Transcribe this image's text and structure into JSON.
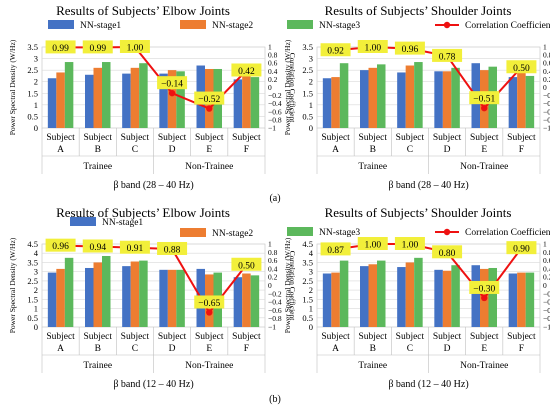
{
  "chart_data": [
    {
      "type": "bar",
      "title": "Results of Subjects’ Elbow Joints",
      "xlabel": "β band (28 – 40 Hz)",
      "ylabel": "Power Spectral Density (W/Hz)",
      "y2label": "Correlation Coefficient",
      "categories": [
        "Subject A",
        "Subject B",
        "Subject C",
        "Subject D",
        "Subject E",
        "Subject F"
      ],
      "groups": [
        "Trainee",
        "Non-Trainee"
      ],
      "series": [
        {
          "name": "NN-stage1",
          "values": [
            2.15,
            2.3,
            2.35,
            2.35,
            2.7,
            2.1
          ]
        },
        {
          "name": "NN-stage2",
          "values": [
            2.4,
            2.6,
            2.6,
            2.5,
            2.55,
            2.4
          ]
        },
        {
          "name": "NN-stage3",
          "values": [
            2.85,
            2.85,
            2.8,
            2.45,
            2.55,
            2.2
          ]
        }
      ],
      "line": {
        "name": "Correlation Coefficient",
        "values": [
          0.99,
          0.99,
          1.0,
          -0.14,
          -0.52,
          0.42
        ],
        "labels": [
          "0.99",
          "0.99",
          "1.00",
          "−0.14",
          "−0.52",
          "0.42"
        ]
      },
      "ylim": [
        0,
        3.5
      ],
      "yticks": [
        "0",
        "0.5",
        "1",
        "1.5",
        "2",
        "2.5",
        "3",
        "3.5"
      ],
      "y2lim": [
        -1,
        1
      ],
      "y2ticks": [
        "−1",
        "−0.8",
        "−0.6",
        "−0.4",
        "−0.2",
        "0",
        "0.2",
        "0.4",
        "0.6",
        "0.8",
        "1"
      ]
    },
    {
      "type": "bar",
      "title": "Results of Subjects’ Shoulder Joints",
      "xlabel": "β band (28 – 40 Hz)",
      "ylabel": "Power Spectral Density (W/Hz)",
      "y2label": "Correlation Coefficient",
      "categories": [
        "Subject A",
        "Subject B",
        "Subject C",
        "Subject D",
        "Subject E",
        "Subject F"
      ],
      "groups": [
        "Trainee",
        "Non-Trainee"
      ],
      "series": [
        {
          "name": "NN-stage1",
          "values": [
            2.15,
            2.5,
            2.4,
            2.45,
            2.8,
            2.2
          ]
        },
        {
          "name": "NN-stage2",
          "values": [
            2.2,
            2.6,
            2.7,
            2.45,
            2.5,
            2.4
          ]
        },
        {
          "name": "NN-stage3",
          "values": [
            2.8,
            2.75,
            2.85,
            2.6,
            2.65,
            2.25
          ]
        }
      ],
      "line": {
        "name": "Correlation Coefficient",
        "values": [
          0.92,
          1.0,
          0.96,
          0.78,
          -0.51,
          0.5
        ],
        "labels": [
          "0.92",
          "1.00",
          "0.96",
          "0.78",
          "−0.51",
          "0.50"
        ]
      },
      "ylim": [
        0,
        3.5
      ],
      "yticks": [
        "0",
        "0.5",
        "1",
        "1.5",
        "2",
        "2.5",
        "3",
        "3.5"
      ],
      "y2lim": [
        -1,
        1
      ],
      "y2ticks": [
        "−1",
        "−0.8",
        "−0.6",
        "−0.4",
        "−0.2",
        "0",
        "0.2",
        "0.4",
        "0.6",
        "0.8",
        "1"
      ]
    },
    {
      "type": "bar",
      "title": "Results of Subjects’ Elbow Joints",
      "xlabel": "β band (12 – 40 Hz)",
      "ylabel": "Power Spectral Density (W/Hz)",
      "y2label": "Correlation Coefficient",
      "categories": [
        "Subject A",
        "Subject B",
        "Subject C",
        "Subject D",
        "Subject E",
        "Subject F"
      ],
      "groups": [
        "Trainee",
        "Non-Trainee"
      ],
      "series": [
        {
          "name": "NN-stage1",
          "values": [
            2.95,
            3.2,
            3.3,
            3.1,
            3.15,
            2.7
          ]
        },
        {
          "name": "NN-stage2",
          "values": [
            3.15,
            3.5,
            3.55,
            3.1,
            2.85,
            2.9
          ]
        },
        {
          "name": "NN-stage3",
          "values": [
            3.75,
            3.85,
            3.6,
            3.1,
            2.95,
            2.8
          ]
        }
      ],
      "line": {
        "name": "Correlation Coefficient",
        "values": [
          0.96,
          0.94,
          0.91,
          0.88,
          -0.65,
          0.5
        ],
        "labels": [
          "0.96",
          "0.94",
          "0.91",
          "0.88",
          "−0.65",
          "0.50"
        ]
      },
      "ylim": [
        0,
        4.5
      ],
      "yticks": [
        "0",
        "0.5",
        "1",
        "1.5",
        "2",
        "2.5",
        "3",
        "3.5",
        "4",
        "4.5"
      ],
      "y2lim": [
        -1,
        1
      ],
      "y2ticks": [
        "−1",
        "−0.8",
        "−0.6",
        "−0.4",
        "−0.2",
        "0",
        "0.2",
        "0.4",
        "0.6",
        "0.8",
        "1"
      ]
    },
    {
      "type": "bar",
      "title": "Results of Subjects’ Shoulder Joints",
      "xlabel": "β band (12 – 40 Hz)",
      "ylabel": "Power Spectral Density (W/Hz)",
      "y2label": "Correlation Coefficient",
      "categories": [
        "Subject A",
        "Subject B",
        "Subject C",
        "Subject D",
        "Subject E",
        "Subject F"
      ],
      "groups": [
        "Trainee",
        "Non-Trainee"
      ],
      "series": [
        {
          "name": "NN-stage1",
          "values": [
            2.9,
            3.3,
            3.25,
            3.1,
            3.35,
            2.9
          ]
        },
        {
          "name": "NN-stage2",
          "values": [
            2.95,
            3.4,
            3.5,
            3.05,
            3.15,
            2.95
          ]
        },
        {
          "name": "NN-stage3",
          "values": [
            3.6,
            3.6,
            3.75,
            3.35,
            3.2,
            2.95
          ]
        }
      ],
      "line": {
        "name": "Correlation Coefficient",
        "values": [
          0.87,
          1.0,
          1.0,
          0.8,
          -0.3,
          0.9
        ],
        "labels": [
          "0.87",
          "1.00",
          "1.00",
          "0.80",
          "−0.30",
          "0.90"
        ]
      },
      "ylim": [
        0,
        4.5
      ],
      "yticks": [
        "0",
        "0.5",
        "1",
        "1.5",
        "2",
        "2.5",
        "3",
        "3.5",
        "4",
        "4.5"
      ],
      "y2lim": [
        -1,
        1
      ],
      "y2ticks": [
        "−1",
        "−0.8",
        "−0.6",
        "−0.4",
        "−0.2",
        "0",
        "0.2",
        "0.4",
        "0.6",
        "0.8",
        "1"
      ]
    }
  ],
  "colors": {
    "stage1": "#4472c4",
    "stage2": "#ed7d31",
    "stage3": "#5cb85c",
    "line": "#ee1111",
    "label_bg": "#f2ef3a",
    "grid": "#d9d9d9"
  },
  "captions": [
    "(a)",
    "(b)"
  ]
}
